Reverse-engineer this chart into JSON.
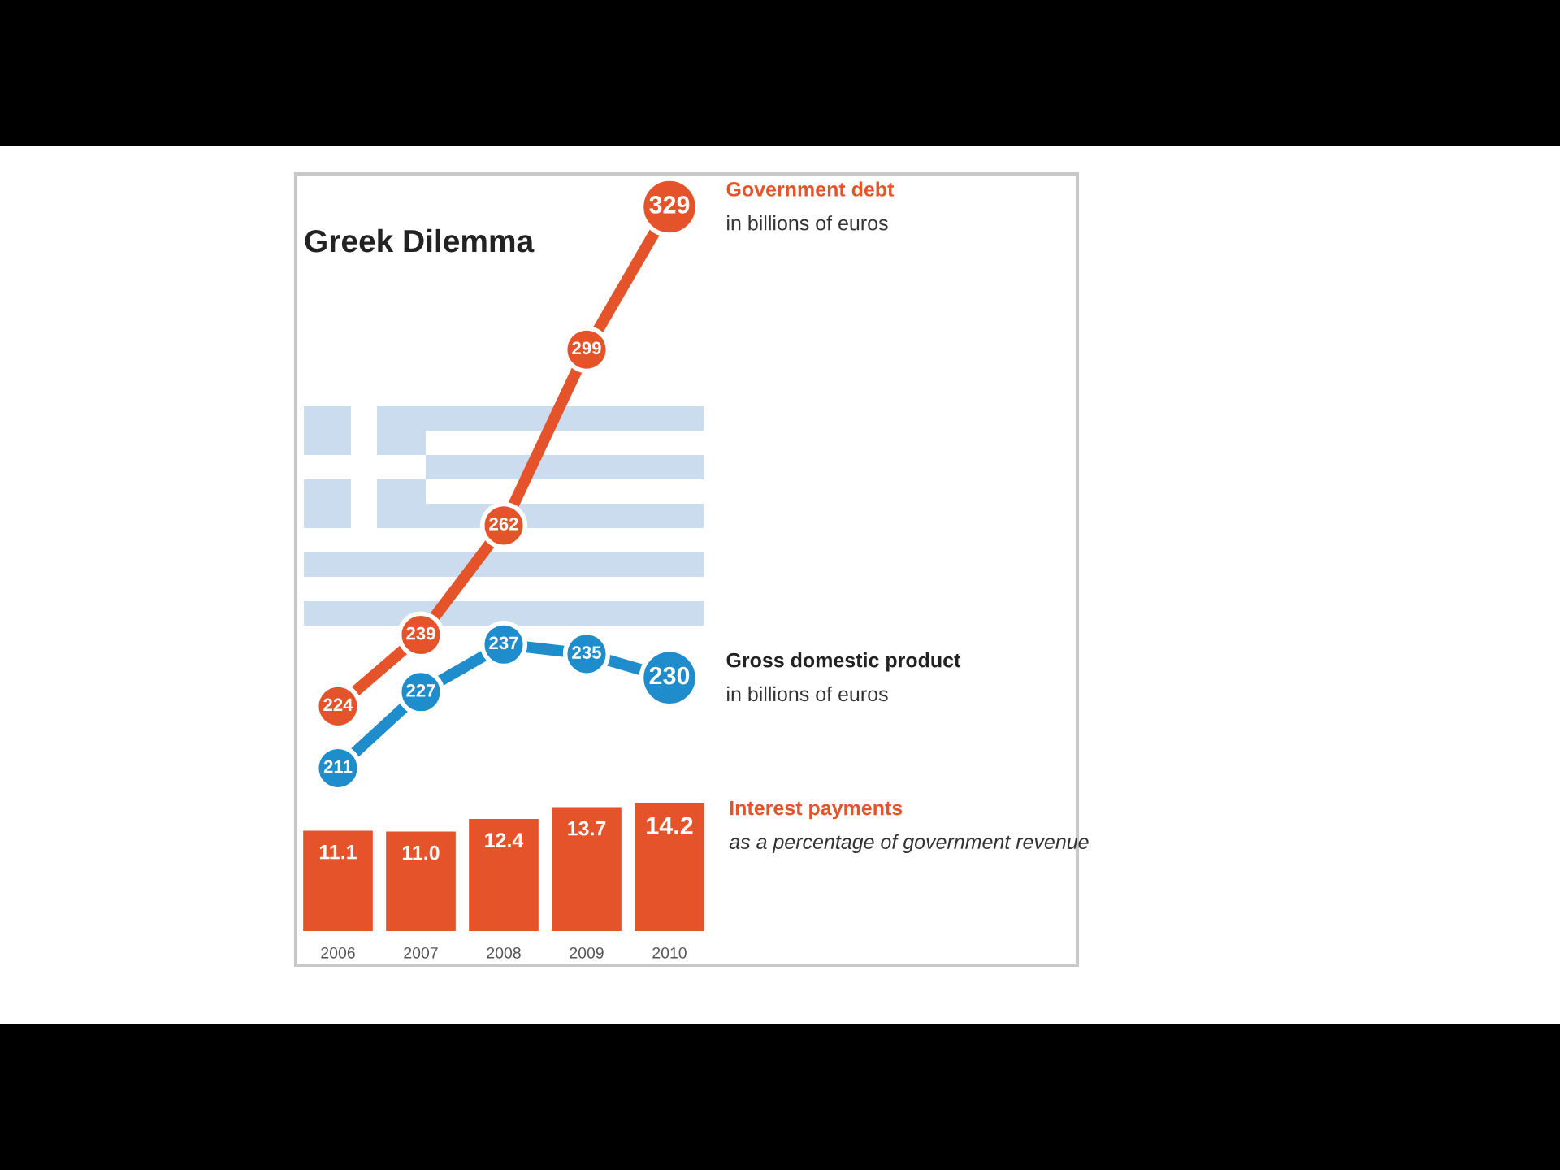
{
  "chart_data": [
    {
      "type": "line",
      "title": "Greek Dilemma",
      "categories": [
        "2006",
        "2007",
        "2008",
        "2009",
        "2010"
      ],
      "series": [
        {
          "name": "Government debt",
          "color": "#e4532a",
          "values": [
            224,
            239,
            262,
            299,
            329
          ]
        },
        {
          "name": "Gross domestic product",
          "color": "#1f8ccb",
          "values": [
            211,
            227,
            237,
            235,
            230
          ]
        }
      ],
      "annotations": [
        {
          "text": "in billions of euros",
          "x": "2010",
          "y": 329
        },
        {
          "text": "in billions of euros",
          "x": "2010",
          "y": 230
        }
      ],
      "data_labels": true,
      "tick_labels": false,
      "marker": "circle",
      "line_style": "solid"
    },
    {
      "type": "bar",
      "categories": [
        "2006",
        "2007",
        "2008",
        "2009",
        "2010"
      ],
      "series": [
        {
          "name": "Interest payments",
          "color": "#e4532a",
          "values": [
            11.1,
            11.0,
            12.4,
            13.7,
            14.2
          ],
          "value_labels": [
            "11.1",
            "11.0",
            "12.4",
            "13.7",
            "14.2"
          ]
        }
      ],
      "annotations": [
        "as a percentage of government revenue"
      ],
      "tick_labels": "x"
    }
  ]
}
